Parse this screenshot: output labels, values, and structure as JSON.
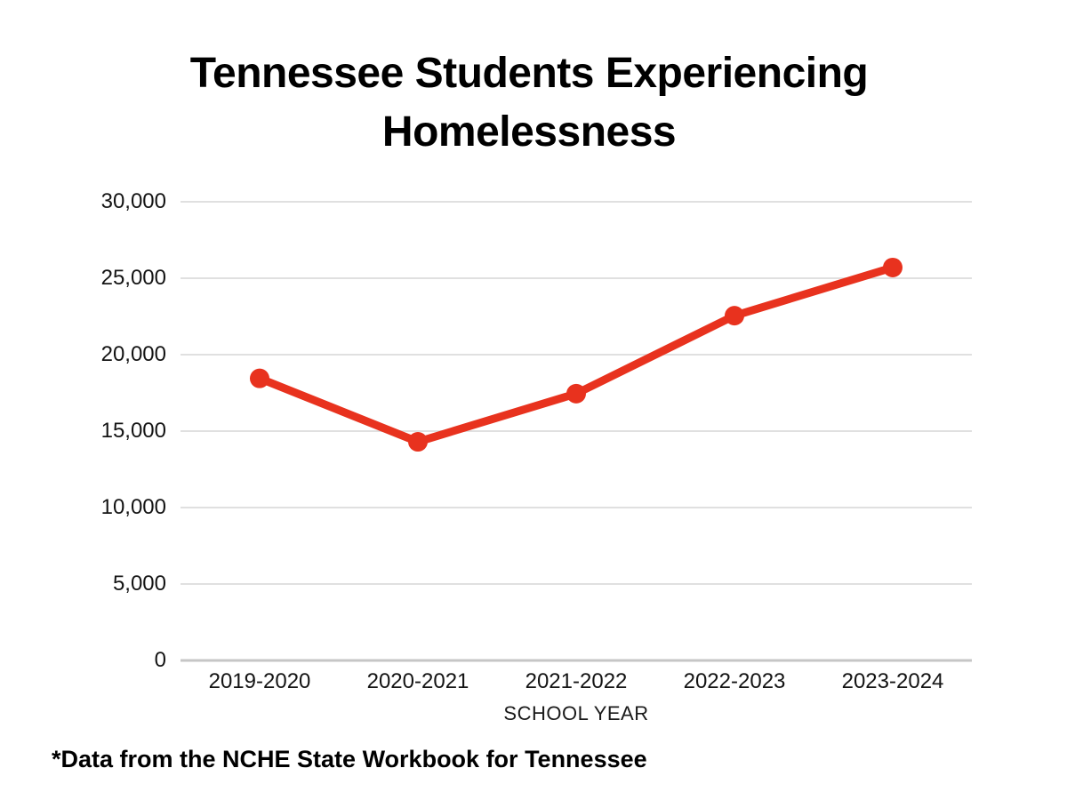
{
  "title": {
    "line1": "Tennessee Students Experiencing",
    "line2": "Homelessness"
  },
  "footnote": "*Data from the NCHE State Workbook for Tennessee",
  "chart_data": {
    "type": "line",
    "title": "Tennessee Students Experiencing Homelessness",
    "categories": [
      "2019-2020",
      "2020-2021",
      "2021-2022",
      "2022-2023",
      "2023-2024"
    ],
    "values": [
      18450,
      14300,
      17450,
      22550,
      25700
    ],
    "xlabel": "SCHOOL YEAR",
    "ylabel": "",
    "ylim": [
      0,
      30000
    ],
    "yticks": [
      0,
      5000,
      10000,
      15000,
      20000,
      25000,
      30000
    ],
    "ytick_labels": [
      "0",
      "5,000",
      "10,000",
      "15,000",
      "20,000",
      "25,000",
      "30,000"
    ],
    "grid": true,
    "legend": false,
    "style": {
      "line_color": "#e8321e",
      "marker_color": "#e8321e",
      "gridline_color": "#e0e0e0",
      "axis_line_color": "#c6c6c6",
      "background_color": "#ffffff",
      "line_width": 9,
      "marker_radius": 11
    }
  }
}
